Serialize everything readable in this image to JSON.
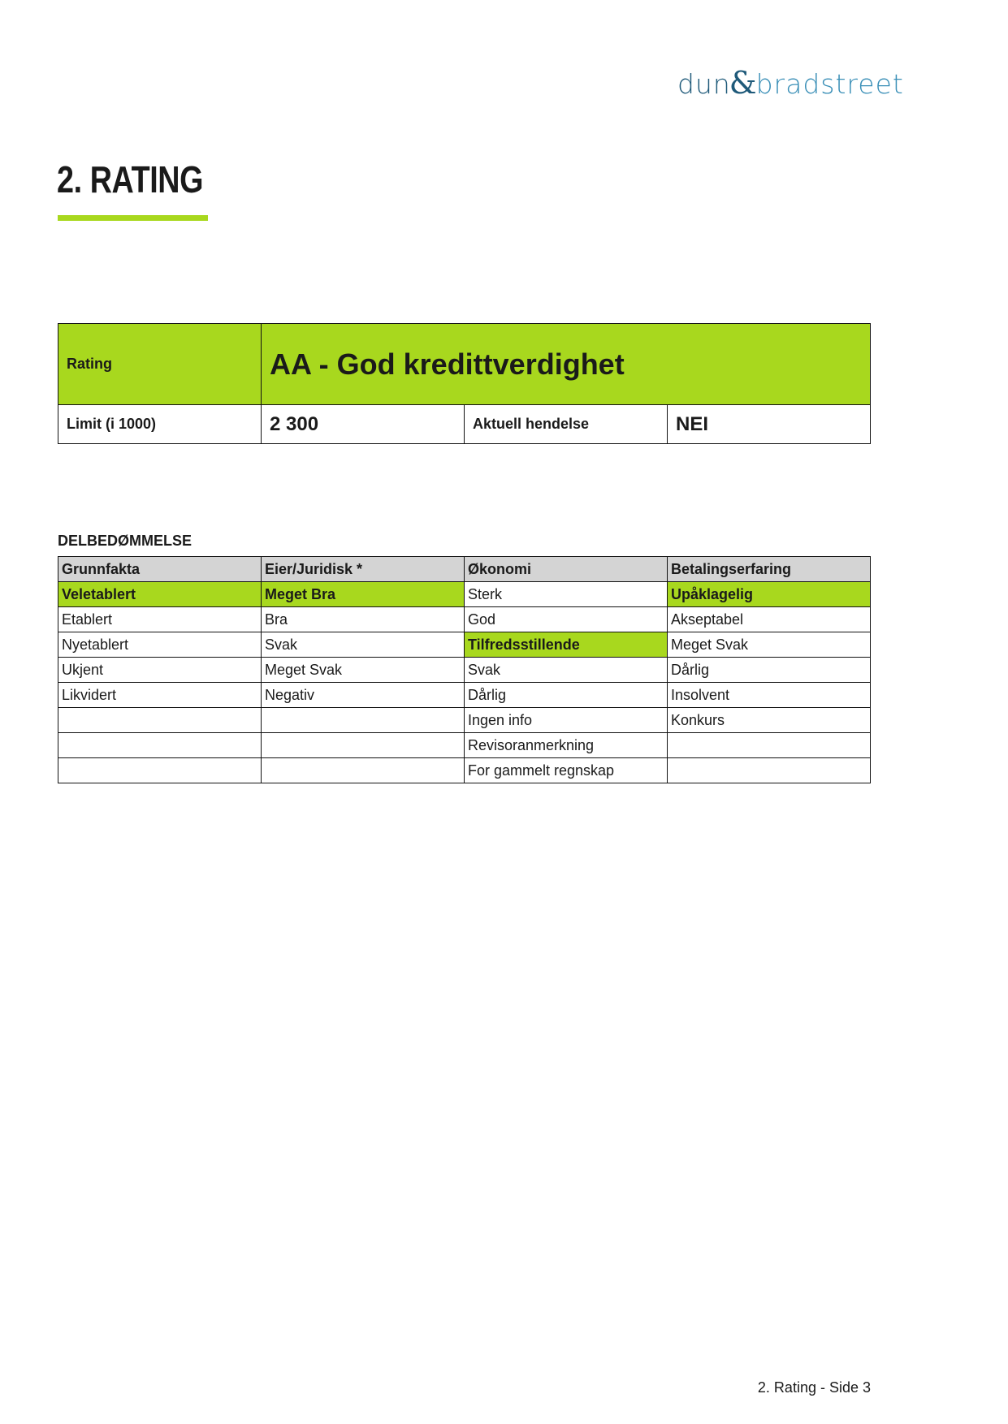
{
  "brand": {
    "logo_text": "dun & bradstreet",
    "part1": "dun",
    "amp": "&",
    "part2": "bradstreet",
    "accent": "#a8d81e"
  },
  "page_title": "2. RATING",
  "rating_table": {
    "rating_label": "Rating",
    "rating_value": "AA - God kredittverdighet",
    "limit_label": "Limit (i 1000)",
    "limit_value": "2 300",
    "event_label": "Aktuell hendelse",
    "event_value": "NEI"
  },
  "delbedommelse": {
    "heading": "DELBEDØMMELSE",
    "headers": [
      "Grunnfakta",
      "Eier/Juridisk *",
      "Økonomi",
      "Betalingserfaring"
    ],
    "rows": [
      [
        "Veletablert",
        "Meget Bra",
        "Sterk",
        "Upåklagelig"
      ],
      [
        "Etablert",
        "Bra",
        "God",
        "Akseptabel"
      ],
      [
        "Nyetablert",
        "Svak",
        "Tilfredsstillende",
        "Meget Svak"
      ],
      [
        "Ukjent",
        "Meget Svak",
        "Svak",
        "Dårlig"
      ],
      [
        "Likvidert",
        "Negativ",
        "Dårlig",
        "Insolvent"
      ],
      [
        "",
        "",
        "Ingen info",
        "Konkurs"
      ],
      [
        "",
        "",
        "Revisoranmerkning",
        ""
      ],
      [
        "",
        "",
        "For gammelt regnskap",
        ""
      ]
    ],
    "selected": [
      [
        0,
        0
      ],
      [
        0,
        1
      ],
      [
        2,
        2
      ],
      [
        0,
        3
      ]
    ]
  },
  "footer": "2. Rating - Side 3"
}
